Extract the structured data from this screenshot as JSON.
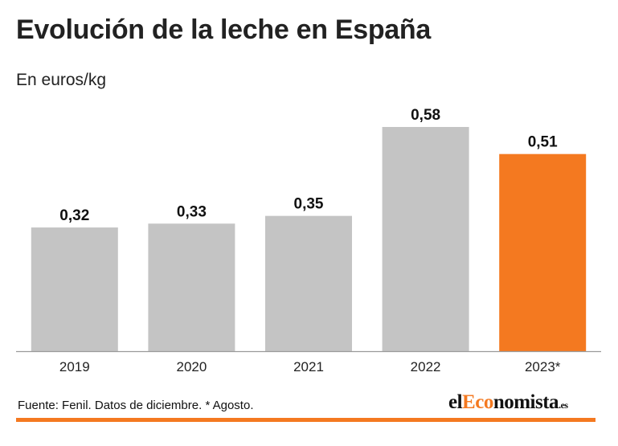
{
  "header": {
    "title": "Evolución de la leche en España",
    "subtitle": "En euros/kg"
  },
  "footer": {
    "source": "Fuente: Fenil. Datos de diciembre. * Agosto.",
    "logo_part1": "el",
    "logo_part2": "Eco",
    "logo_part3": "nomista",
    "logo_part4": ".es"
  },
  "colors": {
    "bar_default": "#c4c4c4",
    "bar_highlight": "#f47920",
    "axis": "#9a9a9a",
    "rule": "#f47920"
  },
  "chart_data": {
    "type": "bar",
    "title": "Evolución de la leche en España",
    "ylabel": "En euros/kg",
    "xlabel": "",
    "categories": [
      "2019",
      "2020",
      "2021",
      "2022",
      "2023*"
    ],
    "values": [
      0.32,
      0.33,
      0.35,
      0.58,
      0.51
    ],
    "value_labels": [
      "0,32",
      "0,33",
      "0,35",
      "0,58",
      "0,51"
    ],
    "highlight_index": 4,
    "ylim": [
      0,
      0.58
    ],
    "grid": false
  }
}
